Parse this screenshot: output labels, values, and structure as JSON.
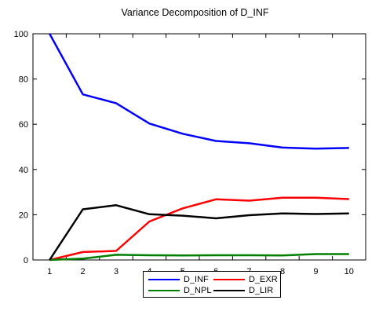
{
  "chart_data": {
    "type": "line",
    "title": "Variance Decomposition of D_INF",
    "xlabel": "",
    "ylabel": "",
    "x": [
      1,
      2,
      3,
      4,
      5,
      6,
      7,
      8,
      9,
      10
    ],
    "xlim": [
      0.5,
      10.5
    ],
    "ylim": [
      0,
      100
    ],
    "y_ticks": [
      0,
      20,
      40,
      60,
      80,
      100
    ],
    "grid": false,
    "legend_position": "bottom",
    "series": [
      {
        "name": "D_INF",
        "color": "#0000ff",
        "values": [
          100,
          73.2,
          69.3,
          60.3,
          55.8,
          52.6,
          51.6,
          49.7,
          49.2,
          49.5
        ]
      },
      {
        "name": "D_EXR",
        "color": "#ff0000",
        "values": [
          0,
          3.5,
          4.0,
          17.0,
          22.8,
          26.8,
          26.2,
          27.5,
          27.5,
          26.9
        ]
      },
      {
        "name": "D_NPL",
        "color": "#008000",
        "values": [
          0,
          0.6,
          2.3,
          2.1,
          2.0,
          2.1,
          2.1,
          2.0,
          2.6,
          2.6
        ]
      },
      {
        "name": "D_LIR",
        "color": "#000000",
        "values": [
          0,
          22.4,
          24.2,
          20.2,
          19.6,
          18.4,
          19.8,
          20.6,
          20.3,
          20.6
        ]
      }
    ]
  }
}
